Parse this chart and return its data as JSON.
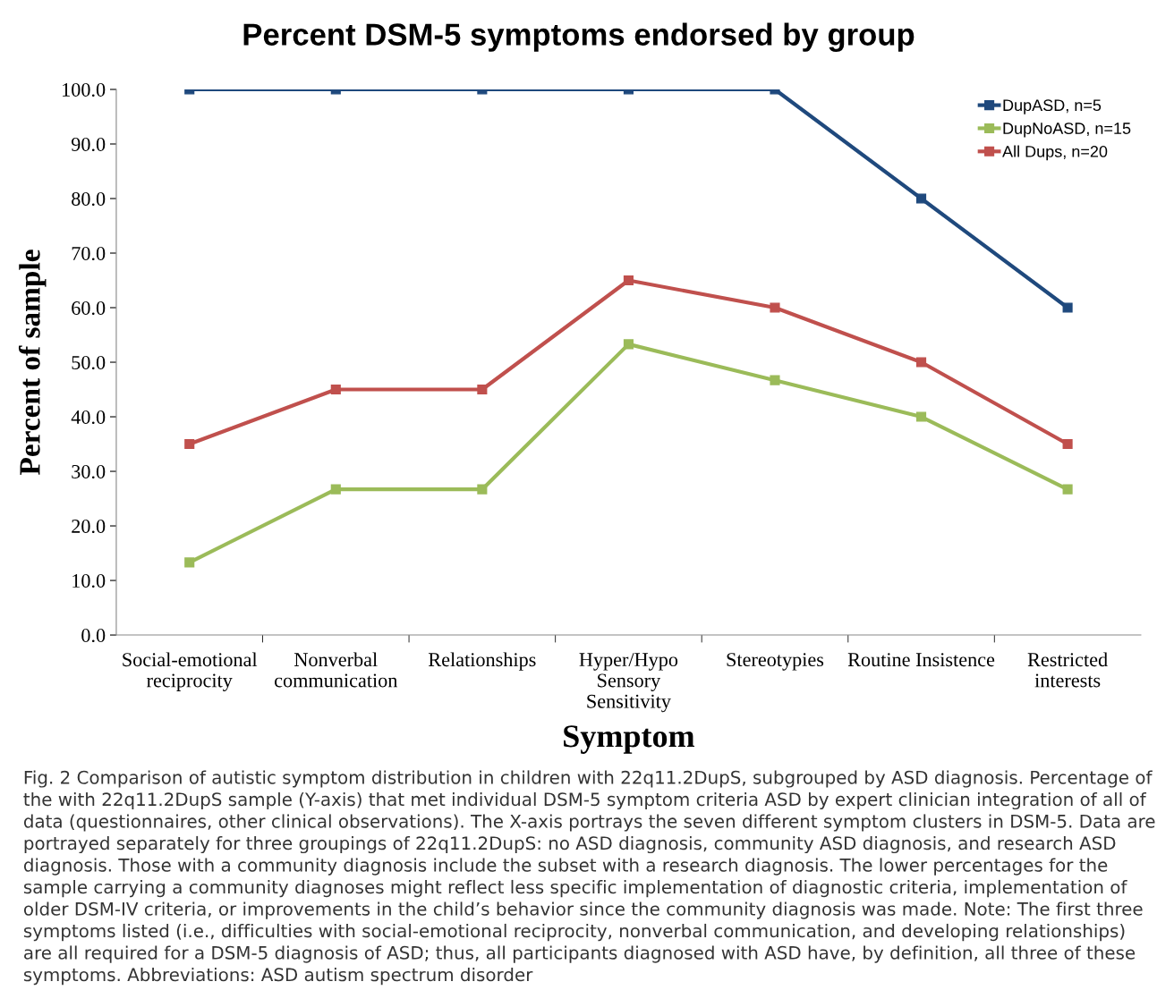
{
  "chart_data": {
    "type": "line",
    "title": "Percent DSM-5 symptoms endorsed by group",
    "xlabel": "Symptom",
    "ylabel": "Percent of sample",
    "categories": [
      "Social-emotional\nreciprocity",
      "Nonverbal\ncommunication",
      "Relationships",
      "Hyper/Hypo\nSensory\nSensitivity",
      "Stereotypies",
      "Routine Insistence",
      "Restricted\ninterests"
    ],
    "series": [
      {
        "name": "DupASD, n=5",
        "color": "#1f497d",
        "values": [
          100,
          100,
          100,
          100,
          100,
          80,
          60
        ]
      },
      {
        "name": "DupNoASD, n=15",
        "color": "#9bbb59",
        "values": [
          13.3,
          26.7,
          26.7,
          53.3,
          46.7,
          40,
          26.7
        ]
      },
      {
        "name": "All Dups, n=20",
        "color": "#c0504d",
        "values": [
          35,
          45,
          45,
          65,
          60,
          50,
          35
        ]
      }
    ],
    "ylim": [
      0,
      100
    ],
    "yticks": [
      {
        "value": 0,
        "label": "0.0"
      },
      {
        "value": 10,
        "label": "10.0"
      },
      {
        "value": 20,
        "label": "20.0"
      },
      {
        "value": 30,
        "label": "30.0"
      },
      {
        "value": 40,
        "label": "40.0"
      },
      {
        "value": 50,
        "label": "50.0"
      },
      {
        "value": 60,
        "label": "60.0"
      },
      {
        "value": 70,
        "label": "70.0"
      },
      {
        "value": 80,
        "label": "80.0"
      },
      {
        "value": 90,
        "label": "90.0"
      },
      {
        "value": 100,
        "label": "100.0"
      }
    ],
    "marker": "square",
    "line_style": "solid",
    "grid": false,
    "legend": "top right",
    "annotations": [
      "Fig. 2 Comparison of autistic symptom distribution in children with 22q11.2DupS, subgrouped by ASD diagnosis. Percentage of the with 22q11.2DupS sample (Y-axis) that met individual DSM-5 symptom criteria ASD by expert clinician integration of all of data (questionnaires, other clinical observations). The X-axis portrays the seven different symptom clusters in DSM-5. Data are portrayed separately for three groupings of 22q11.2DupS: no ASD diagnosis, community ASD diagnosis, and research ASD diagnosis. Those with a community diagnosis include the subset with a research diagnosis. The lower percentages for the sample carrying a community diagnoses might reflect less specific implementation of diagnostic criteria, implementation of older DSM-IV criteria, or improvements in the child’s behavior since the community diagnosis was made. Note: The first three symptoms listed (i.e., difficulties with social-emotional reciprocity, nonverbal communication, and developing relationships) are all required for a DSM-5 diagnosis of ASD; thus, all participants diagnosed with ASD have, by definition, all three of these symptoms. Abbreviations: ASD autism spectrum disorder"
    ]
  }
}
